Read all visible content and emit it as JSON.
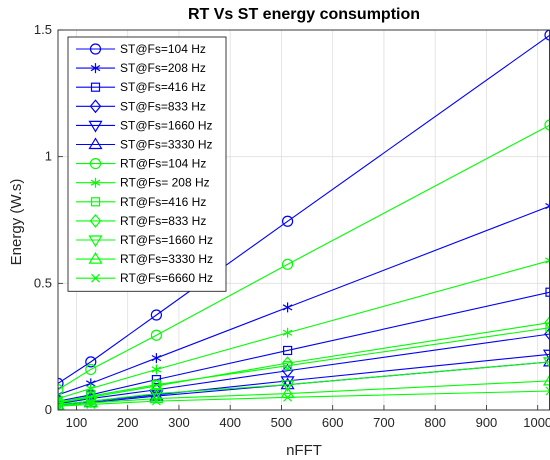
{
  "chart_data": {
    "type": "line",
    "title": "RT Vs ST energy consumption",
    "xlabel": "nFFT",
    "ylabel": "Energy (W.s)",
    "xlim": [
      64,
      1024
    ],
    "ylim": [
      0,
      1.5
    ],
    "xticks": [
      100,
      200,
      300,
      400,
      500,
      600,
      700,
      800,
      900,
      1000
    ],
    "yticks": [
      0,
      0.5,
      1,
      1.5
    ],
    "ytick_labels": [
      "0",
      "0.5",
      "1",
      "1.5"
    ],
    "grid": true,
    "legend_position": "top-left",
    "x": [
      64,
      128,
      256,
      512,
      1024
    ],
    "series": [
      {
        "name": "ST@Fs=104 Hz",
        "color": "#0000ff",
        "marker": "circle",
        "values": [
          0.105,
          0.19,
          0.375,
          0.745,
          1.48
        ]
      },
      {
        "name": "ST@Fs=208 Hz",
        "color": "#0000ff",
        "marker": "asterisk",
        "values": [
          0.06,
          0.105,
          0.205,
          0.405,
          0.805
        ]
      },
      {
        "name": "ST@Fs=416 Hz",
        "color": "#0000ff",
        "marker": "square",
        "values": [
          0.035,
          0.06,
          0.12,
          0.235,
          0.465
        ]
      },
      {
        "name": "ST@Fs=833 Hz",
        "color": "#0000ff",
        "marker": "diamond",
        "values": [
          0.025,
          0.045,
          0.08,
          0.155,
          0.3
        ]
      },
      {
        "name": "ST@Fs=1660 Hz",
        "color": "#0000ff",
        "marker": "triangle-down",
        "values": [
          0.02,
          0.035,
          0.06,
          0.115,
          0.22
        ]
      },
      {
        "name": "ST@Fs=3330 Hz",
        "color": "#0000ff",
        "marker": "triangle-up",
        "values": [
          0.015,
          0.03,
          0.055,
          0.1,
          0.19
        ]
      },
      {
        "name": "RT@Fs=104 Hz",
        "color": "#00ff00",
        "marker": "circle",
        "values": [
          0.08,
          0.16,
          0.295,
          0.575,
          1.125
        ]
      },
      {
        "name": "RT@Fs= 208 Hz",
        "color": "#00ff00",
        "marker": "asterisk",
        "values": [
          0.045,
          0.085,
          0.16,
          0.305,
          0.59
        ]
      },
      {
        "name": "RT@Fs=416 Hz",
        "color": "#00ff00",
        "marker": "square",
        "values": [
          0.03,
          0.055,
          0.1,
          0.175,
          0.325
        ]
      },
      {
        "name": "RT@Fs=833 Hz",
        "color": "#00ff00",
        "marker": "diamond",
        "values": [
          0.028,
          0.05,
          0.095,
          0.185,
          0.345
        ]
      },
      {
        "name": "RT@Fs=1660 Hz",
        "color": "#00ff00",
        "marker": "triangle-down",
        "values": [
          0.022,
          0.035,
          0.065,
          0.1,
          0.19
        ]
      },
      {
        "name": "RT@Fs=3330 Hz",
        "color": "#00ff00",
        "marker": "triangle-up",
        "values": [
          0.018,
          0.028,
          0.045,
          0.065,
          0.115
        ]
      },
      {
        "name": "RT@Fs=6660 Hz",
        "color": "#00ff00",
        "marker": "x",
        "values": [
          0.015,
          0.022,
          0.035,
          0.05,
          0.075
        ]
      }
    ]
  }
}
